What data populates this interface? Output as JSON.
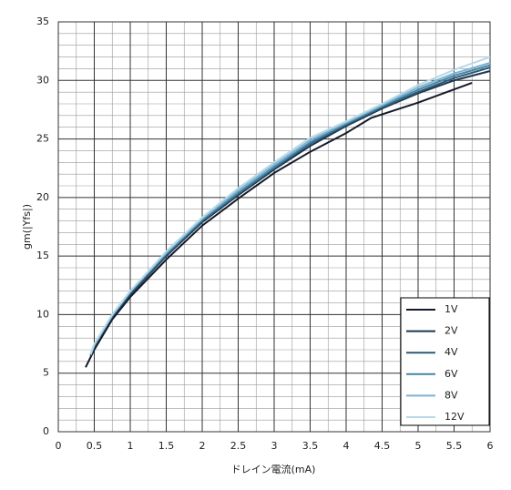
{
  "chart_data": {
    "type": "line",
    "x_label": "ドレイン電流(mA)",
    "y_label": "gm(|Yfs|)",
    "xlim": [
      0,
      6
    ],
    "ylim": [
      0,
      35
    ],
    "xticks": [
      0,
      0.5,
      1,
      1.5,
      2,
      2.5,
      3,
      3.5,
      4,
      4.5,
      5,
      5.5,
      6
    ],
    "yticks": [
      0,
      5,
      10,
      15,
      20,
      25,
      30,
      35
    ],
    "grid": true,
    "legend": "lower right",
    "series": [
      {
        "name": "1V",
        "color": "#151a2a",
        "x": [
          0.38,
          0.5,
          0.75,
          1,
          1.5,
          2,
          2.5,
          3,
          3.5,
          4,
          4.35,
          5,
          5.75
        ],
        "values": [
          5.5,
          7.0,
          9.6,
          11.5,
          14.7,
          17.6,
          19.9,
          22.1,
          23.9,
          25.5,
          26.8,
          28.1,
          29.8
        ]
      },
      {
        "name": "2V",
        "color": "#1e3650",
        "x": [
          0.45,
          0.5,
          0.75,
          1,
          1.5,
          2,
          2.5,
          3,
          3.5,
          4,
          4.5,
          5,
          5.5,
          6
        ],
        "values": [
          6.5,
          7.3,
          9.8,
          11.7,
          15.0,
          17.9,
          20.2,
          22.4,
          24.4,
          26.1,
          27.6,
          28.9,
          30.0,
          30.8
        ]
      },
      {
        "name": "4V",
        "color": "#2b5a74",
        "x": [
          0.45,
          0.5,
          0.75,
          1,
          1.5,
          2,
          2.5,
          3,
          3.5,
          4,
          4.5,
          5,
          5.5,
          6
        ],
        "values": [
          6.5,
          7.3,
          9.9,
          11.8,
          15.1,
          18.0,
          20.3,
          22.5,
          24.6,
          26.2,
          27.7,
          29.0,
          30.2,
          31.1
        ]
      },
      {
        "name": "6V",
        "color": "#4783a6",
        "x": [
          0.45,
          0.5,
          0.75,
          1,
          1.5,
          2,
          2.5,
          3,
          3.5,
          4,
          4.5,
          5,
          5.5,
          6
        ],
        "values": [
          6.6,
          7.4,
          9.9,
          11.9,
          15.2,
          18.1,
          20.4,
          22.6,
          24.7,
          26.3,
          27.8,
          29.2,
          30.4,
          31.3
        ]
      },
      {
        "name": "8V",
        "color": "#7db2cf",
        "x": [
          0.45,
          0.5,
          0.75,
          1,
          1.5,
          2,
          2.5,
          3,
          3.5,
          4,
          4.5,
          5,
          5.5,
          6
        ],
        "values": [
          6.6,
          7.4,
          10.0,
          12.0,
          15.3,
          18.2,
          20.6,
          22.8,
          24.9,
          26.4,
          27.9,
          29.4,
          30.6,
          31.5
        ]
      },
      {
        "name": "12V",
        "color": "#b7d9e7",
        "x": [
          0.45,
          0.5,
          0.75,
          1,
          1.5,
          2,
          2.5,
          3,
          3.5,
          4,
          4.5,
          5,
          5.5,
          6
        ],
        "values": [
          6.6,
          7.5,
          10.0,
          12.0,
          15.4,
          18.3,
          20.8,
          23.0,
          25.1,
          26.5,
          28.0,
          29.6,
          30.9,
          32.0
        ]
      }
    ]
  }
}
